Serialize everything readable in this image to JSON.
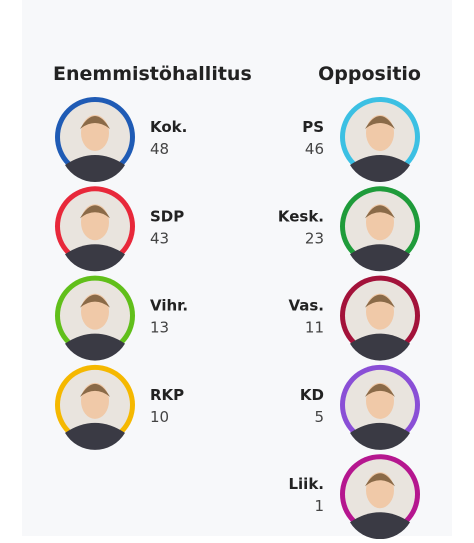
{
  "groups": [
    {
      "title": "Enemmistöhallitus",
      "parties": [
        {
          "name": "Kok.",
          "seats": "48",
          "color": "#1f5bb5"
        },
        {
          "name": "SDP",
          "seats": "43",
          "color": "#e8283a"
        },
        {
          "name": "Vihr.",
          "seats": "13",
          "color": "#61bf1a"
        },
        {
          "name": "RKP",
          "seats": "10",
          "color": "#f5b800"
        }
      ]
    },
    {
      "title": "Oppositio",
      "parties": [
        {
          "name": "PS",
          "seats": "46",
          "color": "#3cc0e3"
        },
        {
          "name": "Kesk.",
          "seats": "23",
          "color": "#1f9b3a"
        },
        {
          "name": "Vas.",
          "seats": "11",
          "color": "#a3123a"
        },
        {
          "name": "KD",
          "seats": "5",
          "color": "#8a4fd6"
        },
        {
          "name": "Liik.",
          "seats": "1",
          "color": "#b5168f"
        }
      ]
    }
  ]
}
